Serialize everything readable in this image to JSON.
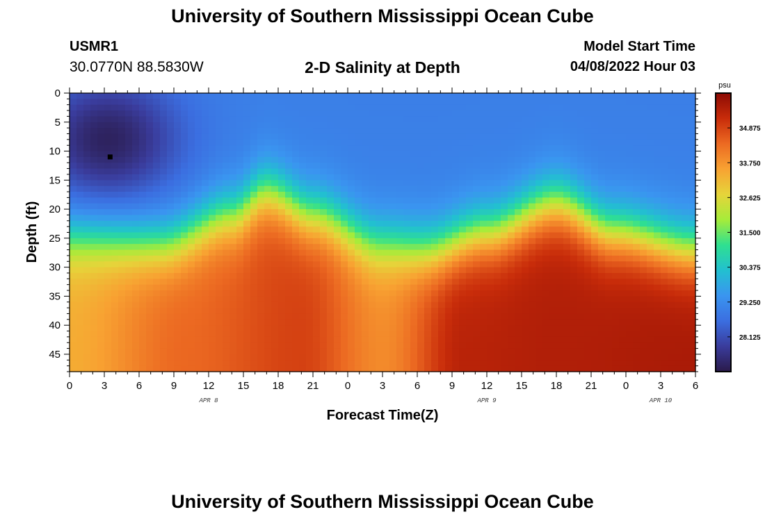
{
  "header": {
    "title": "University of Southern Mississippi Ocean Cube",
    "station_id": "USMR1",
    "coordinates": "30.0770N  88.5830W",
    "subtitle": "2-D Salinity at Depth",
    "model_start_label": "Model Start Time",
    "model_start_value": "04/08/2022 Hour 03"
  },
  "footer": {
    "title": "University of Southern Mississippi Ocean Cube"
  },
  "chart_data": {
    "type": "heatmap",
    "xlabel": "Forecast Time(Z)",
    "ylabel": "Depth (ft)",
    "x_range_hours": [
      0,
      54
    ],
    "x_tick_labels": [
      "0",
      "3",
      "6",
      "9",
      "12",
      "15",
      "18",
      "21",
      "0",
      "3",
      "6",
      "9",
      "12",
      "15",
      "18",
      "21",
      "0",
      "3",
      "6"
    ],
    "day_labels": [
      {
        "label": "APR 8",
        "hour": 12
      },
      {
        "label": "APR 9",
        "hour": 36
      },
      {
        "label": "APR 10",
        "hour": 51
      }
    ],
    "y_range_ft": [
      0,
      48
    ],
    "y_tick_labels": [
      "0",
      "5",
      "10",
      "15",
      "20",
      "25",
      "30",
      "35",
      "40",
      "45"
    ],
    "y_inverted": true,
    "colorbar": {
      "unit": "psu",
      "min": 27.0,
      "max": 36.0,
      "tick_labels": [
        "34.875",
        "33.750",
        "32.625",
        "31.500",
        "30.375",
        "29.250",
        "28.125"
      ],
      "colors": [
        "#2a1a4a",
        "#3a3c9c",
        "#3b6ee0",
        "#3a95f0",
        "#22c0d0",
        "#2fe090",
        "#a6ec3a",
        "#e6d43a",
        "#f8a232",
        "#ec6a22",
        "#c82c0a",
        "#8c0a04"
      ]
    },
    "interface_depth_ft": [
      {
        "hour": 0,
        "depth": 25
      },
      {
        "hour": 8,
        "depth": 26
      },
      {
        "hour": 14,
        "depth": 21
      },
      {
        "hour": 17,
        "depth": 17
      },
      {
        "hour": 21,
        "depth": 21
      },
      {
        "hour": 27,
        "depth": 26
      },
      {
        "hour": 31,
        "depth": 27
      },
      {
        "hour": 36,
        "depth": 24
      },
      {
        "hour": 42,
        "depth": 19
      },
      {
        "hour": 47,
        "depth": 24
      },
      {
        "hour": 54,
        "depth": 27
      }
    ],
    "deep_salinity_psu": [
      {
        "hour": 0,
        "value": 33.4
      },
      {
        "hour": 10,
        "value": 34.4
      },
      {
        "hour": 20,
        "value": 34.9
      },
      {
        "hour": 27,
        "value": 33.9
      },
      {
        "hour": 34,
        "value": 35.4
      },
      {
        "hour": 42,
        "value": 35.5
      },
      {
        "hour": 54,
        "value": 35.6
      }
    ],
    "fresh_lens": {
      "center_hour": 3.3,
      "center_depth": 8,
      "min_value": 27.2,
      "radius_hours": 7,
      "radius_depth": 12
    },
    "surface_salinity_psu": 29.0,
    "marker": {
      "hour": 3.5,
      "depth": 11
    }
  }
}
